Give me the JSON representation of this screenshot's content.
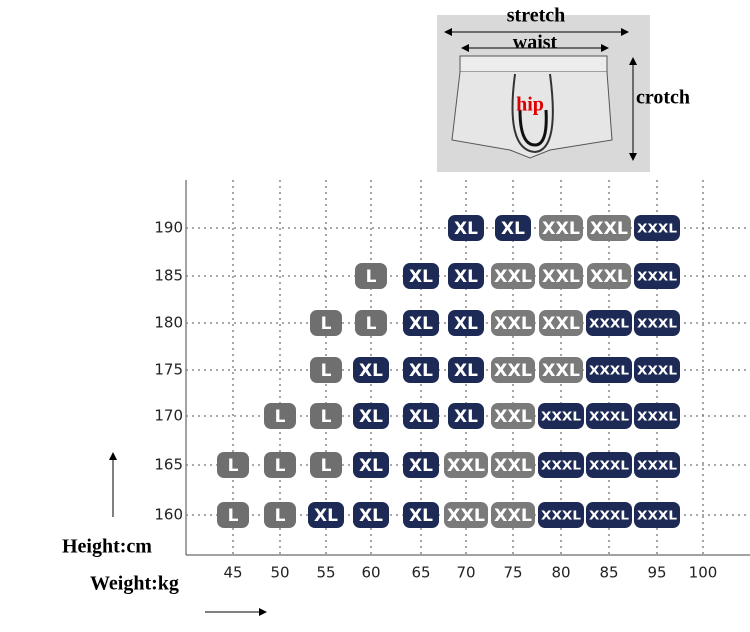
{
  "diagram": {
    "labels": {
      "stretch": "stretch",
      "waist": "waist",
      "hip": "hip",
      "crotch": "crotch"
    }
  },
  "size_chart": {
    "y_label": "Height:cm",
    "x_label": "Weight:kg",
    "weights": [
      "45",
      "50",
      "55",
      "60",
      "65",
      "70",
      "75",
      "80",
      "85",
      "95",
      "100"
    ],
    "badge_colors": {
      "L": "#6f6f6f",
      "XL": "#1c2a55",
      "XXL": "#7a7a7a",
      "XXXL": "#1c2a55"
    },
    "rows": [
      {
        "height": "190",
        "cells": [
          null,
          null,
          null,
          null,
          null,
          "XL",
          "XL",
          "XXL",
          "XXL",
          "XXXL",
          null
        ]
      },
      {
        "height": "185",
        "cells": [
          null,
          null,
          null,
          "L",
          "XL",
          "XL",
          "XXL",
          "XXL",
          "XXL",
          "XXXL",
          null
        ]
      },
      {
        "height": "180",
        "cells": [
          null,
          null,
          "L",
          "L",
          "XL",
          "XL",
          "XXL",
          "XXL",
          "XXXL",
          "XXXL",
          null
        ]
      },
      {
        "height": "175",
        "cells": [
          null,
          null,
          "L",
          "XL",
          "XL",
          "XL",
          "XXL",
          "XXL",
          "XXXL",
          "XXXL",
          null
        ]
      },
      {
        "height": "170",
        "cells": [
          null,
          "L",
          "L",
          "XL",
          "XL",
          "XL",
          "XXL",
          "XXXL",
          "XXXL",
          "XXXL",
          null
        ]
      },
      {
        "height": "165",
        "cells": [
          "L",
          "L",
          "L",
          "XL",
          "XL",
          "XXL",
          "XXL",
          "XXXL",
          "XXXL",
          "XXXL",
          null
        ]
      },
      {
        "height": "160",
        "cells": [
          "L",
          "L",
          "XL",
          "XL",
          "XL",
          "XXL",
          "XXL",
          "XXXL",
          "XXXL",
          "XXXL",
          null
        ]
      }
    ]
  }
}
